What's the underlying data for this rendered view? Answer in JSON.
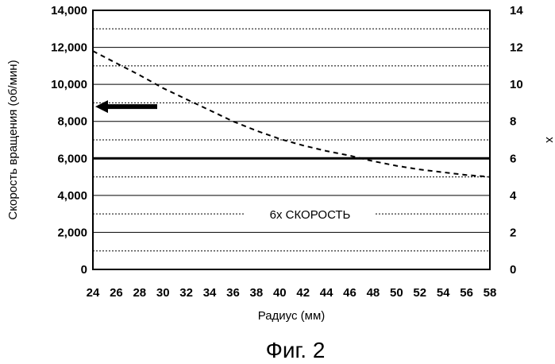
{
  "chart_data": {
    "type": "line",
    "title": "",
    "caption": "Фиг. 2",
    "xlabel": "Радиус (мм)",
    "ylabel": "Скорость вращения (об/мин)",
    "y2label": "x",
    "xlim": [
      24,
      58
    ],
    "ylim": [
      0,
      14000
    ],
    "y2lim": [
      0,
      14
    ],
    "x_ticks": [
      24,
      26,
      28,
      30,
      32,
      34,
      36,
      38,
      40,
      42,
      44,
      46,
      48,
      50,
      52,
      54,
      56,
      58
    ],
    "y_ticks": [
      "0",
      "2,000",
      "4,000",
      "6,000",
      "8,000",
      "10,000",
      "12,000",
      "14,000"
    ],
    "y2_ticks": [
      "0",
      "2",
      "4",
      "6",
      "8",
      "10",
      "12",
      "14"
    ],
    "grid": true,
    "series": [
      {
        "style": "solid",
        "axis": "right",
        "x": [
          24,
          58
        ],
        "y": [
          6,
          6
        ]
      },
      {
        "style": "dashed",
        "axis": "left",
        "x": [
          24,
          26,
          28,
          30,
          32,
          34,
          36,
          38,
          40,
          42,
          44,
          46,
          48,
          50,
          52,
          54,
          56,
          58
        ],
        "y": [
          11800,
          11150,
          10500,
          9800,
          9200,
          8600,
          8000,
          7500,
          7050,
          6700,
          6400,
          6150,
          5850,
          5600,
          5400,
          5250,
          5100,
          5000
        ]
      }
    ],
    "annotations": {
      "solid_line_label": "6x СКОРОСТЬ",
      "arrow_direction": "left"
    }
  }
}
